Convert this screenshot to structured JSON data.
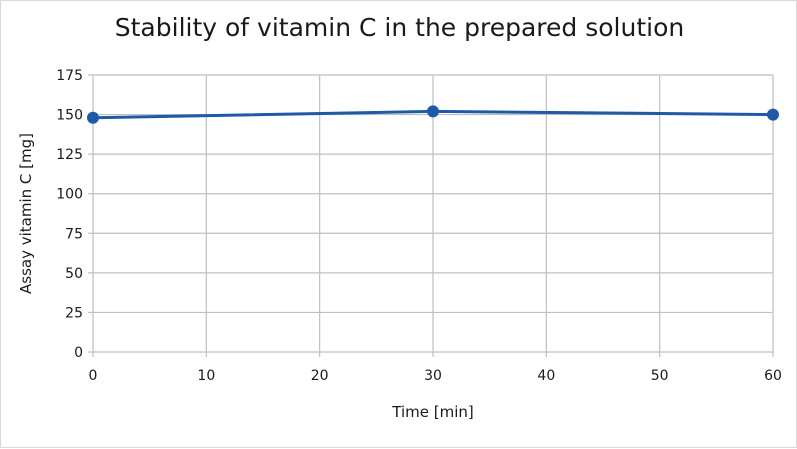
{
  "chart_data": {
    "type": "line",
    "title": "Stability of vitamin C in the prepared solution",
    "xlabel": "Time [min]",
    "ylabel": "Assay vitamin C [mg]",
    "xlim": [
      0,
      60
    ],
    "ylim": [
      0,
      175
    ],
    "x_ticks": [
      0,
      10,
      20,
      30,
      40,
      50,
      60
    ],
    "y_ticks": [
      0,
      25,
      50,
      75,
      100,
      125,
      150,
      175
    ],
    "grid": true,
    "legend": "none",
    "series": [
      {
        "color": "#1f5aa6",
        "x": [
          0,
          30,
          60
        ],
        "y": [
          148,
          152,
          150
        ]
      }
    ]
  }
}
